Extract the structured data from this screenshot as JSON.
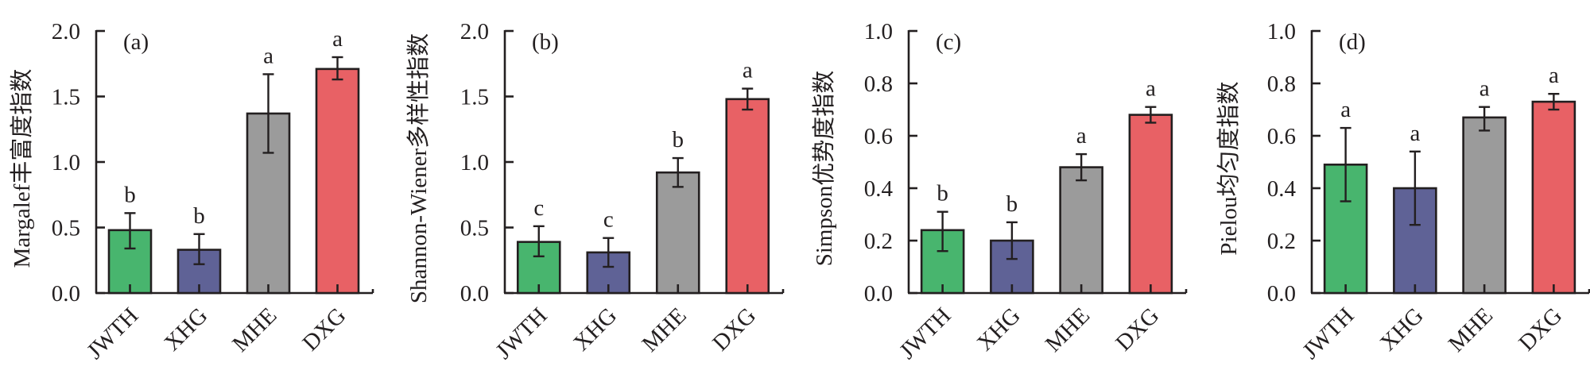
{
  "chart_data": [
    {
      "type": "bar",
      "panel_label": "(a)",
      "title": "",
      "xlabel": "",
      "ylabel": "Margalef丰富度指数",
      "ylim": [
        0,
        2.0
      ],
      "yticks": [
        0.0,
        0.5,
        1.0,
        1.5,
        2.0
      ],
      "ytick_labels": [
        "0.0",
        "0.5",
        "1.0",
        "1.5",
        "2.0"
      ],
      "grid": false,
      "categories": [
        "JWTH",
        "XHG",
        "MHE",
        "DXG"
      ],
      "values": [
        0.48,
        0.33,
        1.37,
        1.71
      ],
      "error_upper": [
        0.61,
        0.45,
        1.67,
        1.8
      ],
      "error_lower": [
        0.34,
        0.22,
        1.07,
        1.63
      ],
      "significance": [
        "b",
        "b",
        "a",
        "a"
      ]
    },
    {
      "type": "bar",
      "panel_label": "(b)",
      "title": "",
      "xlabel": "",
      "ylabel": "Shannon-Wiener多样性指数",
      "ylim": [
        0,
        2.0
      ],
      "yticks": [
        0.0,
        0.5,
        1.0,
        1.5,
        2.0
      ],
      "ytick_labels": [
        "0.0",
        "0.5",
        "1.0",
        "1.5",
        "2.0"
      ],
      "grid": false,
      "categories": [
        "JWTH",
        "XHG",
        "MHE",
        "DXG"
      ],
      "values": [
        0.39,
        0.31,
        0.92,
        1.48
      ],
      "error_upper": [
        0.51,
        0.42,
        1.03,
        1.56
      ],
      "error_lower": [
        0.28,
        0.2,
        0.81,
        1.4
      ],
      "significance": [
        "c",
        "c",
        "b",
        "a"
      ]
    },
    {
      "type": "bar",
      "panel_label": "(c)",
      "title": "",
      "xlabel": "",
      "ylabel": "Simpson优势度指数",
      "ylim": [
        0,
        1.0
      ],
      "yticks": [
        0.0,
        0.2,
        0.4,
        0.6,
        0.8,
        1.0
      ],
      "ytick_labels": [
        "0.0",
        "0.2",
        "0.4",
        "0.6",
        "0.8",
        "1.0"
      ],
      "grid": false,
      "categories": [
        "JWTH",
        "XHG",
        "MHE",
        "DXG"
      ],
      "values": [
        0.24,
        0.2,
        0.48,
        0.68
      ],
      "error_upper": [
        0.31,
        0.27,
        0.53,
        0.71
      ],
      "error_lower": [
        0.16,
        0.13,
        0.43,
        0.65
      ],
      "significance": [
        "b",
        "b",
        "a",
        "a"
      ]
    },
    {
      "type": "bar",
      "panel_label": "(d)",
      "title": "",
      "xlabel": "",
      "ylabel": "Pielou均匀度指数",
      "ylim": [
        0,
        1.0
      ],
      "yticks": [
        0.0,
        0.2,
        0.4,
        0.6,
        0.8,
        1.0
      ],
      "ytick_labels": [
        "0.0",
        "0.2",
        "0.4",
        "0.6",
        "0.8",
        "1.0"
      ],
      "grid": false,
      "categories": [
        "JWTH",
        "XHG",
        "MHE",
        "DXG"
      ],
      "values": [
        0.49,
        0.4,
        0.67,
        0.73
      ],
      "error_upper": [
        0.63,
        0.54,
        0.71,
        0.76
      ],
      "error_lower": [
        0.35,
        0.26,
        0.62,
        0.7
      ],
      "significance": [
        "a",
        "a",
        "a",
        "a"
      ]
    }
  ],
  "bar_colors": {
    "JWTH": "#48b56e",
    "XHG": "#5f6296",
    "MHE": "#9b9b9b",
    "DXG": "#e86165"
  }
}
